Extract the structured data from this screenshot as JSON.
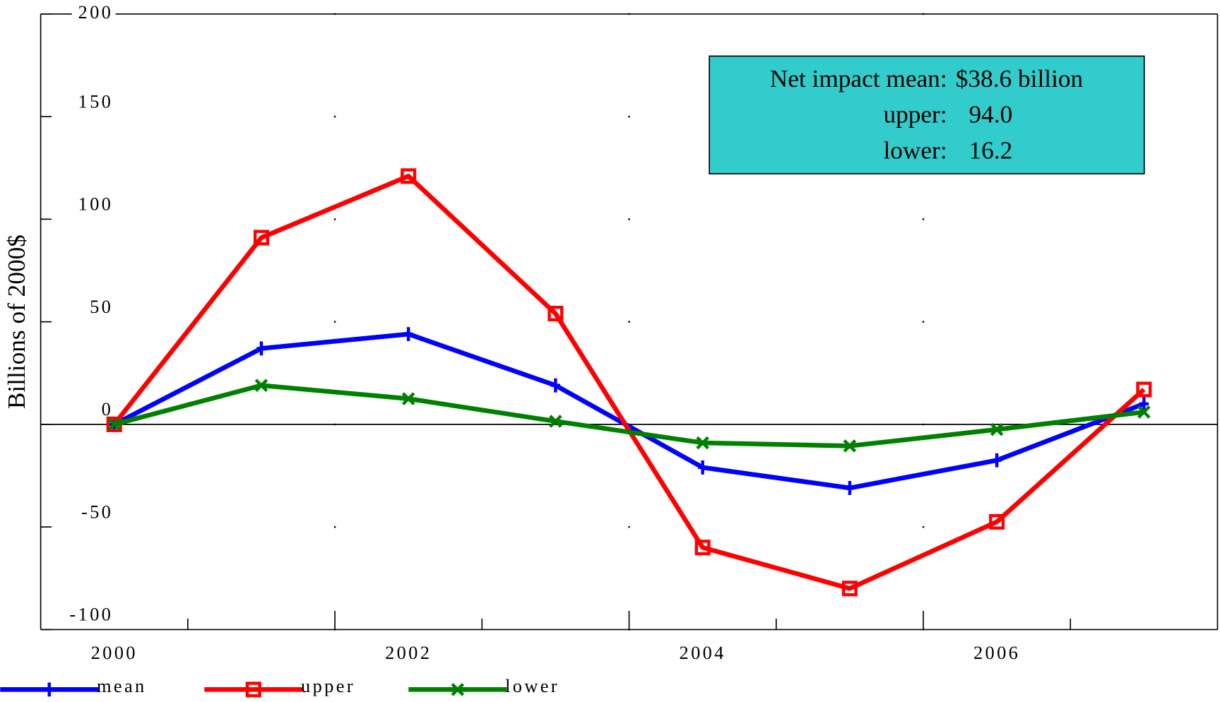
{
  "chart_data": {
    "type": "line",
    "y_label": "Billions of 2000$",
    "categories": [
      "2000",
      null,
      "2002",
      null,
      "2004",
      null,
      "2006",
      null
    ],
    "series": [
      {
        "name": "mean",
        "color": "#0000ff",
        "marker": "plus",
        "values": [
          0,
          37,
          44,
          19,
          -21,
          -31,
          -17.5,
          10
        ]
      },
      {
        "name": "upper",
        "color": "#ff0000",
        "marker": "square",
        "values": [
          0,
          91,
          121,
          54,
          -60,
          -80,
          -47.5,
          17
        ]
      },
      {
        "name": "lower",
        "color": "#008000",
        "marker": "x",
        "values": [
          0,
          19,
          12.5,
          1.5,
          -9,
          -10.5,
          -2.5,
          6
        ]
      }
    ],
    "ylim": [
      -100,
      200
    ],
    "yticks": [
      -100,
      -50,
      0,
      50,
      100,
      150,
      200
    ],
    "annotation": {
      "color": "#33cccc",
      "rows": [
        [
          "Net impact mean:",
          "$38.6 billion"
        ],
        [
          "upper:",
          "94.0"
        ],
        [
          "lower:",
          "16.2"
        ]
      ]
    },
    "legend": "bottom-left"
  }
}
